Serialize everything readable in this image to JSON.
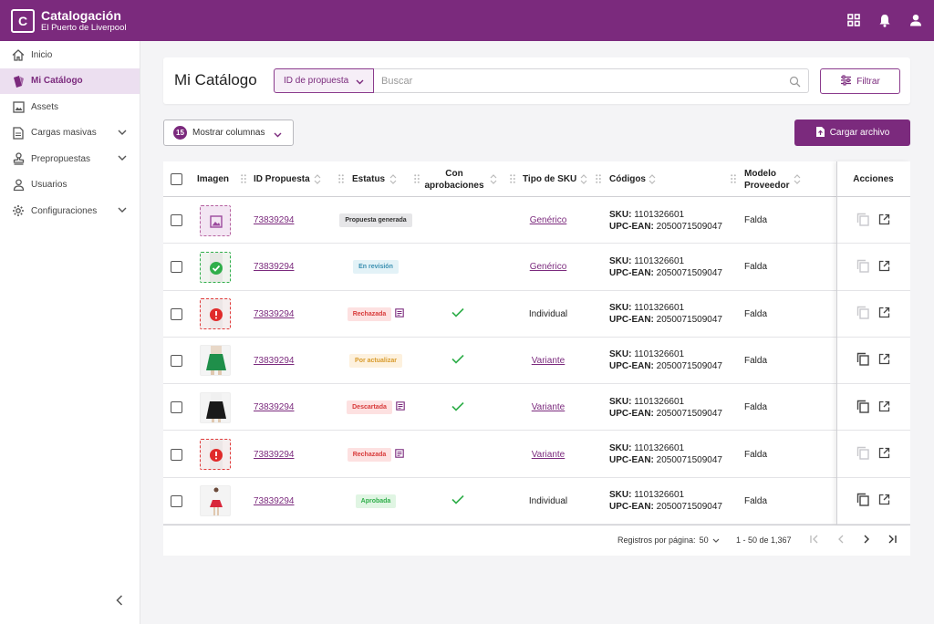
{
  "app": {
    "title": "Catalogación",
    "subtitle": "El Puerto de Liverpool",
    "logo_letter": "C",
    "brand_color": "#7b2a7d"
  },
  "topbar": {
    "icons": [
      "apps-grid-icon",
      "bell-icon",
      "user-icon"
    ]
  },
  "sidebar": {
    "items": [
      {
        "label": "Inicio",
        "icon": "home-icon",
        "has_chevron": false
      },
      {
        "label": "Mi Catálogo",
        "icon": "catalog-icon",
        "has_chevron": false,
        "active": true
      },
      {
        "label": "Assets",
        "icon": "image-icon",
        "has_chevron": false
      },
      {
        "label": "Cargas masivas",
        "icon": "document-icon",
        "has_chevron": true
      },
      {
        "label": "Prepropuestas",
        "icon": "stamp-icon",
        "has_chevron": true
      },
      {
        "label": "Usuarios",
        "icon": "user-icon",
        "has_chevron": false
      },
      {
        "label": "Configuraciones",
        "icon": "gear-icon",
        "has_chevron": true
      }
    ]
  },
  "header": {
    "title": "Mi Catálogo",
    "search_type": "ID de propuesta",
    "search_placeholder": "Buscar",
    "filter_label": "Filtrar"
  },
  "controls": {
    "columns_count": "15",
    "columns_label": "Mostrar columnas",
    "upload_label": "Cargar archivo"
  },
  "table": {
    "headers": {
      "image": "Imagen",
      "id": "ID Propuesta",
      "status": "Estatus",
      "approvals_1": "Con",
      "approvals_2": "aprobaciones",
      "sku_type": "Tipo de SKU",
      "codes": "Códigos",
      "model_1": "Modelo",
      "model_2": "Proveedor",
      "actions": "Acciones"
    },
    "sku_label": "SKU:",
    "upc_label": "UPC-EAN:",
    "rows": [
      {
        "thumb": "placeholder",
        "id": "73839294",
        "status": "Propuesta generada",
        "status_bg": "#e6e6e8",
        "status_fg": "#333333",
        "note": false,
        "approved": false,
        "sku_type": "Genérico",
        "sku_link": true,
        "sku": "1101326601",
        "upc": "2050071509047",
        "model": "Falda",
        "copy_active": false
      },
      {
        "thumb": "valid",
        "id": "73839294",
        "status": "En revisión",
        "status_bg": "#e3f2f7",
        "status_fg": "#3a8fb0",
        "note": false,
        "approved": false,
        "sku_type": "Genérico",
        "sku_link": true,
        "sku": "1101326601",
        "upc": "2050071509047",
        "model": "Falda",
        "copy_active": false
      },
      {
        "thumb": "error",
        "id": "73839294",
        "status": "Rechazada",
        "status_bg": "#fde1e1",
        "status_fg": "#d83a3a",
        "note": true,
        "approved": true,
        "sku_type": "Individual",
        "sku_link": false,
        "sku": "1101326601",
        "upc": "2050071509047",
        "model": "Falda",
        "copy_active": false
      },
      {
        "thumb": "green-skirt",
        "id": "73839294",
        "status": "Por actualizar",
        "status_bg": "#fdf1de",
        "status_fg": "#d89a2a",
        "note": false,
        "approved": true,
        "sku_type": "Variante",
        "sku_link": true,
        "sku": "1101326601",
        "upc": "2050071509047",
        "model": "Falda",
        "copy_active": true
      },
      {
        "thumb": "black-skirt",
        "id": "73839294",
        "status": "Descartada",
        "status_bg": "#fde1e1",
        "status_fg": "#d83a3a",
        "note": true,
        "approved": true,
        "sku_type": "Variante",
        "sku_link": true,
        "sku": "1101326601",
        "upc": "2050071509047",
        "model": "Falda",
        "copy_active": true
      },
      {
        "thumb": "error",
        "id": "73839294",
        "status": "Rechazada",
        "status_bg": "#fde1e1",
        "status_fg": "#d83a3a",
        "note": true,
        "approved": false,
        "sku_type": "Variante",
        "sku_link": true,
        "sku": "1101326601",
        "upc": "2050071509047",
        "model": "Falda",
        "copy_active": false
      },
      {
        "thumb": "red-skirt",
        "id": "73839294",
        "status": "Aprobada",
        "status_bg": "#e0f5e3",
        "status_fg": "#2fae4a",
        "note": false,
        "approved": true,
        "sku_type": "Individual",
        "sku_link": false,
        "sku": "1101326601",
        "upc": "2050071509047",
        "model": "Falda",
        "copy_active": true
      }
    ]
  },
  "pagination": {
    "rows_per_page_label": "Registros por página:",
    "rows_per_page": "50",
    "range": "1 - 50 de 1,367"
  }
}
